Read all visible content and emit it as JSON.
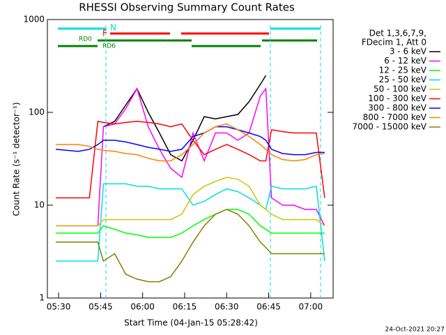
{
  "chart_data": {
    "type": "line",
    "title": "RHESSI Observing Summary Count Rates",
    "x_label": "Start Time (04-Jan-15 05:28:42)",
    "y_label": "Count Rate (s⁻¹ detector⁻¹)",
    "footer": "24-Oct-2021 20:27",
    "legend_header": [
      "Det 1,3,6,7,9,",
      "FDecim 1, Att 0"
    ],
    "annotations": [
      "N",
      "F",
      "RD0",
      "RD6"
    ],
    "log_y": true,
    "ylim": [
      1,
      1000
    ],
    "yticks": [
      1,
      10,
      100,
      1000
    ],
    "xlim": [
      "05:26",
      "07:08"
    ],
    "xticks": [
      "05:30",
      "05:45",
      "06:00",
      "06:15",
      "06:30",
      "06:45",
      "07:00"
    ],
    "x": [
      "05:29",
      "05:33",
      "05:37",
      "05:41",
      "05:44",
      "05:46",
      "05:50",
      "05:54",
      "05:58",
      "06:02",
      "06:06",
      "06:10",
      "06:14",
      "06:18",
      "06:22",
      "06:26",
      "06:30",
      "06:34",
      "06:38",
      "06:42",
      "06:44",
      "06:46",
      "06:50",
      "06:54",
      "06:58",
      "07:02",
      "07:05"
    ],
    "series": [
      {
        "name": "3 - 6 keV",
        "color": "#000000",
        "values": [
          null,
          null,
          null,
          null,
          null,
          70,
          80,
          120,
          180,
          100,
          60,
          35,
          30,
          50,
          90,
          85,
          90,
          95,
          130,
          200,
          250,
          null,
          null,
          null,
          null,
          null,
          null
        ]
      },
      {
        "name": "6 - 12 keV",
        "color": "#ff00ff",
        "values": [
          6,
          6,
          6,
          6,
          6,
          70,
          75,
          110,
          180,
          70,
          40,
          25,
          20,
          60,
          30,
          60,
          60,
          50,
          60,
          150,
          180,
          12,
          10,
          10,
          9,
          9,
          6
        ]
      },
      {
        "name": "12 - 25 keV",
        "color": "#00ff00",
        "values": [
          5,
          5,
          5,
          5,
          5,
          6,
          5.5,
          5,
          4.8,
          4.5,
          4.5,
          4.5,
          5,
          6,
          7,
          8,
          9,
          9,
          8,
          6,
          5.5,
          5,
          5,
          5,
          5,
          5,
          5
        ]
      },
      {
        "name": "25 - 50 keV",
        "color": "#00e0e0",
        "values": [
          2.5,
          2.5,
          2.5,
          2.5,
          2.5,
          17,
          17,
          17,
          16,
          16,
          15,
          15,
          15,
          10,
          11,
          13,
          15,
          14,
          12,
          10,
          9,
          16,
          15,
          15,
          15,
          16,
          2.5
        ]
      },
      {
        "name": "50 - 100 keV",
        "color": "#c8c800",
        "values": [
          6,
          6,
          6,
          6,
          6,
          7,
          7,
          7,
          7,
          7,
          7,
          7,
          8,
          13,
          16,
          18,
          20,
          19,
          16,
          10,
          9,
          8,
          7,
          7,
          7,
          7,
          6
        ]
      },
      {
        "name": "100 - 300 keV",
        "color": "#ff0000",
        "values": [
          12,
          12,
          12,
          12,
          80,
          78,
          75,
          78,
          80,
          78,
          75,
          70,
          75,
          50,
          35,
          40,
          45,
          40,
          35,
          30,
          30,
          65,
          62,
          60,
          60,
          60,
          12
        ]
      },
      {
        "name": "300 - 800 keV",
        "color": "#0000ff",
        "values": [
          40,
          39,
          38,
          40,
          45,
          50,
          50,
          48,
          45,
          42,
          40,
          38,
          40,
          55,
          60,
          70,
          70,
          65,
          60,
          55,
          50,
          40,
          36,
          35,
          35,
          37,
          37
        ]
      },
      {
        "name": "800 - 7000 keV",
        "color": "#ff8000",
        "values": [
          45,
          45,
          45,
          43,
          40,
          39,
          38,
          36,
          35,
          32,
          30,
          30,
          35,
          45,
          60,
          70,
          75,
          65,
          55,
          45,
          40,
          35,
          31,
          30,
          31,
          35,
          36
        ]
      },
      {
        "name": "7000 - 15000 keV",
        "color": "#808000",
        "values": [
          4,
          4,
          4,
          4,
          4,
          2.5,
          3,
          1.8,
          1.6,
          1.5,
          1.5,
          1.7,
          2.5,
          4,
          6,
          8,
          9,
          8,
          6,
          4,
          3.5,
          3,
          3,
          3,
          3,
          3,
          3
        ]
      }
    ]
  }
}
